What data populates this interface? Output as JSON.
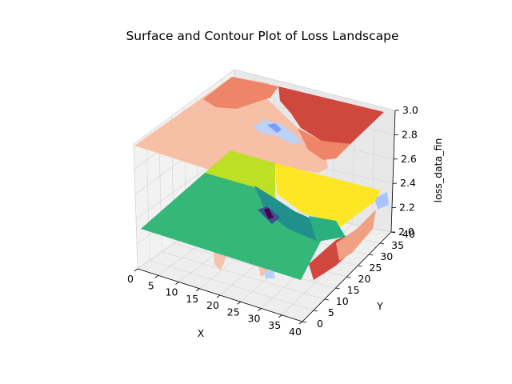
{
  "chart_data": {
    "type": "surface",
    "title": "Surface and Contour Plot of Loss Landscape",
    "xlabel": "X",
    "ylabel": "Y",
    "zlabel": "loss_data_fin",
    "xlim": [
      0,
      40
    ],
    "ylim": [
      0,
      40
    ],
    "zlim": [
      2.0,
      3.0
    ],
    "x_ticks": [
      "0",
      "5",
      "10",
      "15",
      "20",
      "25",
      "30",
      "35",
      "40"
    ],
    "y_ticks": [
      "0",
      "5",
      "10",
      "15",
      "20",
      "25",
      "30",
      "35",
      "40"
    ],
    "z_ticks": [
      "2.0",
      "2.2",
      "2.4",
      "2.6",
      "2.8",
      "3.0"
    ],
    "grid": true,
    "surface_colormap": "viridis",
    "contour_colormap": "coolwarm",
    "surface_levels": {
      "low_x_region": 2.3,
      "high_x_high_y_region": 2.4,
      "valley_minimum": 2.05
    },
    "contour_levels": {
      "bottom_plane_z": 3.0,
      "regions": [
        "light salmon",
        "salmon",
        "red",
        "light blue"
      ]
    }
  }
}
